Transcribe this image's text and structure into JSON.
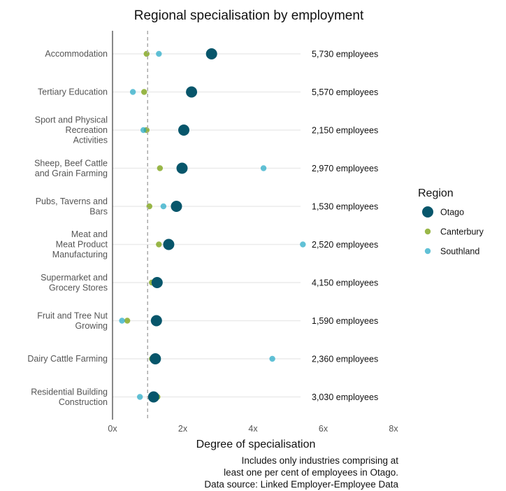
{
  "chart_data": {
    "type": "scatter",
    "title": "Regional specialisation by employment",
    "xlabel": "Degree of specialisation",
    "xlim": [
      0,
      8
    ],
    "x_ticks": [
      0,
      2,
      4,
      6,
      8
    ],
    "x_tick_labels": [
      "0x",
      "2x",
      "4x",
      "6x",
      "8x"
    ],
    "reference_line": 1,
    "grid": false,
    "legend_position": "right",
    "legend_title": "Region",
    "categories": [
      "Accommodation",
      "Tertiary Education",
      "Sport and Physical\nRecreation\nActivities",
      "Sheep, Beef Cattle\nand Grain Farming",
      "Pubs, Taverns and\nBars",
      "Meat and\nMeat Product\nManufacturing",
      "Supermarket and\nGrocery Stores",
      "Fruit and Tree Nut\nGrowing",
      "Dairy Cattle Farming",
      "Residential Building\nConstruction"
    ],
    "employees": [
      "5,730 employees",
      "5,570 employees",
      "2,150 employees",
      "2,970 employees",
      "1,530 employees",
      "2,520 employees",
      "4,150 employees",
      "1,590 employees",
      "2,360 employees",
      "3,030 employees"
    ],
    "series": [
      {
        "name": "Canterbury",
        "color": "#7fa51a",
        "values": [
          0.97,
          0.9,
          0.97,
          1.35,
          1.05,
          1.32,
          1.12,
          0.42,
          1.12,
          1.28
        ]
      },
      {
        "name": "Southland",
        "color": "#1ea7c5",
        "values": [
          1.32,
          0.58,
          0.88,
          4.3,
          1.45,
          5.42,
          1.25,
          0.27,
          4.55,
          0.78
        ]
      },
      {
        "name": "Otago",
        "color": "#07566b",
        "values": [
          2.82,
          2.25,
          2.03,
          1.98,
          1.82,
          1.6,
          1.27,
          1.25,
          1.22,
          1.17
        ]
      }
    ],
    "legend_order": [
      "Otago",
      "Canterbury",
      "Southland"
    ],
    "caption": [
      "Includes only industries comprising at",
      "least one per cent of employees in Otago.",
      "Data source: Linked Employer-Employee Data"
    ]
  }
}
